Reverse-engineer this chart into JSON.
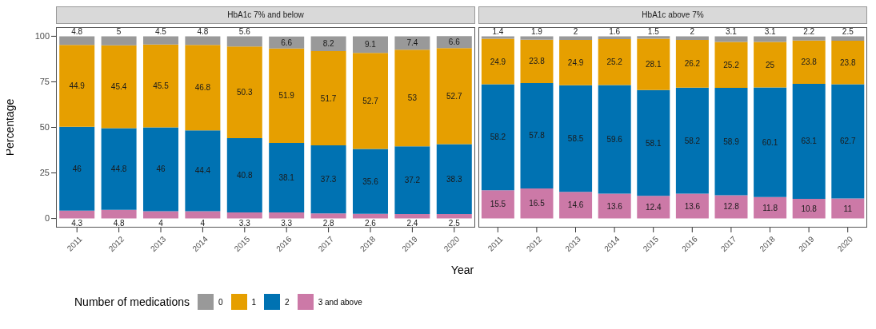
{
  "chart_data": [
    {
      "type": "bar",
      "title": "HbA1c 7% and below",
      "xlabel": "Year",
      "ylabel": "Percentage",
      "legend_title": "Number of medications",
      "categories": [
        "2011",
        "2012",
        "2013",
        "2014",
        "2015",
        "2016",
        "2017",
        "2018",
        "2019",
        "2020"
      ],
      "stacked": true,
      "data_labels": true,
      "legend": "bottom",
      "ylim": [
        -5,
        105
      ],
      "yticks": [
        0,
        25,
        50,
        75,
        100
      ],
      "series": [
        {
          "name": "3 and above",
          "color": "#cc79a7",
          "values": [
            4.3,
            4.8,
            4,
            4,
            3.3,
            3.3,
            2.8,
            2.6,
            2.4,
            2.5
          ]
        },
        {
          "name": "2",
          "color": "#0072b2",
          "values": [
            46,
            44.8,
            46,
            44.4,
            40.8,
            38.1,
            37.3,
            35.6,
            37.2,
            38.3
          ]
        },
        {
          "name": "1",
          "color": "#e69f00",
          "values": [
            44.9,
            45.4,
            45.5,
            46.8,
            50.3,
            51.9,
            51.7,
            52.7,
            53,
            52.7
          ]
        },
        {
          "name": "0",
          "color": "#999999",
          "values": [
            4.8,
            5,
            4.5,
            4.8,
            5.6,
            6.6,
            8.2,
            9.1,
            7.4,
            6.6
          ]
        }
      ]
    },
    {
      "type": "bar",
      "title": "HbA1c above 7%",
      "categories": [
        "2011",
        "2012",
        "2013",
        "2014",
        "2015",
        "2016",
        "2017",
        "2018",
        "2019",
        "2020"
      ],
      "stacked": true,
      "data_labels": true,
      "tick_labels": "x",
      "ylim": [
        -5,
        105
      ],
      "yticks": [
        0,
        25,
        50,
        75,
        100
      ],
      "series": [
        {
          "color": "#cc79a7",
          "values": [
            15.5,
            16.5,
            14.6,
            13.6,
            12.4,
            13.6,
            12.8,
            11.8,
            10.8,
            11
          ]
        },
        {
          "color": "#0072b2",
          "values": [
            58.2,
            57.8,
            58.5,
            59.6,
            58.1,
            58.2,
            58.9,
            60.1,
            63.1,
            62.7
          ]
        },
        {
          "color": "#e69f00",
          "values": [
            24.9,
            23.8,
            24.9,
            25.2,
            28.1,
            26.2,
            25.2,
            25,
            23.8,
            23.8
          ]
        },
        {
          "color": "#999999",
          "values": [
            1.4,
            1.9,
            2,
            1.6,
            1.5,
            2,
            3.1,
            3.1,
            2.2,
            2.5
          ]
        }
      ]
    }
  ]
}
